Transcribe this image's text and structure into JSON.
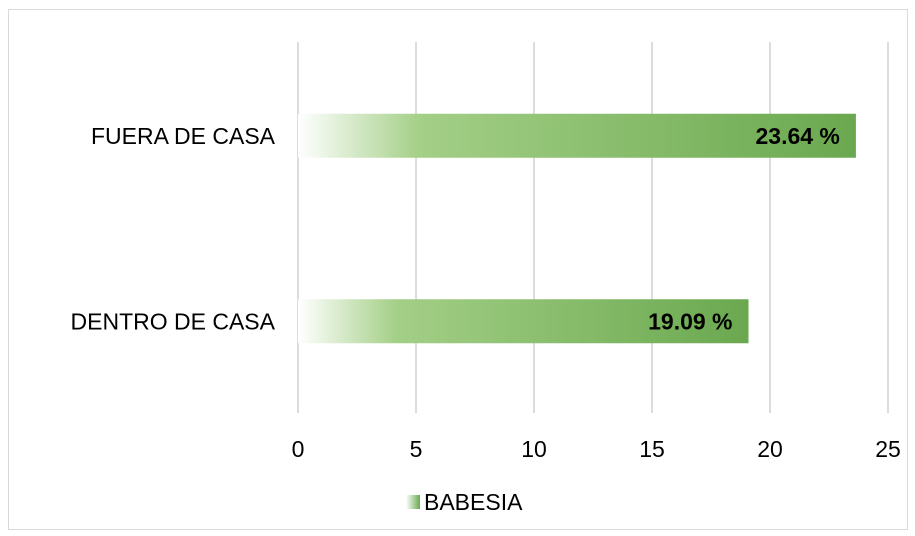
{
  "chart_data": {
    "type": "bar",
    "orientation": "horizontal",
    "categories": [
      "FUERA DE CASA",
      "DENTRO DE CASA"
    ],
    "series": [
      {
        "name": "BABESIA",
        "values": [
          23.64,
          19.09
        ]
      }
    ],
    "data_labels": [
      "23.64 %",
      "19.09 %"
    ],
    "x_ticks": [
      "0",
      "5",
      "10",
      "15",
      "20",
      "25"
    ],
    "xlim": [
      0,
      25
    ],
    "grid": true,
    "legend_position": "bottom",
    "colors": {
      "bar_end": "#6aa84f",
      "bar_mid": "#a3cf86",
      "bar_start": "#ffffff",
      "gridline": "#d0d0d0"
    }
  }
}
